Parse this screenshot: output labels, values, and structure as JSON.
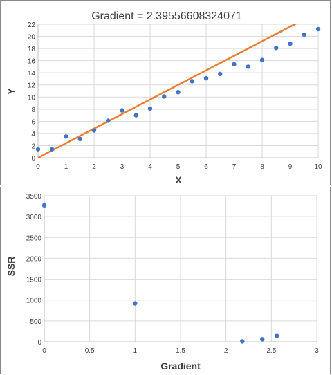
{
  "chart_data": [
    {
      "type": "scatter",
      "title": "Gradient = 2.39556608324071",
      "xlabel": "X",
      "ylabel": "Y",
      "xlim": [
        0,
        10
      ],
      "ylim": [
        0,
        22
      ],
      "xticks": [
        0,
        1,
        2,
        3,
        4,
        5,
        6,
        7,
        8,
        9,
        10
      ],
      "yticks": [
        0,
        2,
        4,
        6,
        8,
        10,
        12,
        14,
        16,
        18,
        20,
        22
      ],
      "grid": true,
      "legend": "none",
      "series": [
        {
          "type": "scatter",
          "color": "#4472C4",
          "x": [
            0,
            0.5,
            1,
            1.5,
            2,
            2.5,
            3,
            3.5,
            4,
            4.5,
            5,
            5.5,
            6,
            6.5,
            7,
            7.5,
            8,
            8.5,
            9,
            9.5,
            10
          ],
          "y": [
            1.4,
            1.4,
            3.5,
            3.1,
            4.5,
            6.1,
            7.8,
            7.0,
            8.1,
            10.1,
            10.8,
            12.6,
            13.1,
            13.8,
            15.4,
            15.0,
            16.1,
            18.1,
            18.8,
            20.3,
            21.2
          ]
        },
        {
          "type": "line",
          "color": "#ED7D31",
          "x": [
            0,
            0.5,
            1,
            1.5,
            2,
            2.5,
            3,
            3.5,
            4,
            4.5,
            5,
            5.5,
            6,
            6.5,
            7,
            7.5,
            8,
            8.5,
            9,
            9.5,
            10
          ],
          "y": [
            0.0,
            1.2,
            2.4,
            3.6,
            4.8,
            6.0,
            7.2,
            8.4,
            9.6,
            10.8,
            12.0,
            13.2,
            14.4,
            15.6,
            16.8,
            18.0,
            19.2,
            20.4,
            21.6,
            22.8,
            24.0
          ]
        }
      ]
    },
    {
      "type": "scatter",
      "title": "",
      "xlabel": "Gradient",
      "ylabel": "SSR",
      "xlim": [
        0,
        3
      ],
      "ylim": [
        0,
        3500
      ],
      "xticks": [
        "0",
        "0.5",
        "1",
        "1.5",
        "2",
        "2.5",
        "3"
      ],
      "yticks": [
        0,
        500,
        1000,
        1500,
        2000,
        2500,
        3000,
        3500
      ],
      "grid": true,
      "legend": "none",
      "series": [
        {
          "type": "scatter",
          "color": "#4472C4",
          "x": [
            0,
            1,
            2.18,
            2.4,
            2.56
          ],
          "y": [
            3270,
            920,
            10,
            60,
            140
          ]
        }
      ]
    }
  ]
}
